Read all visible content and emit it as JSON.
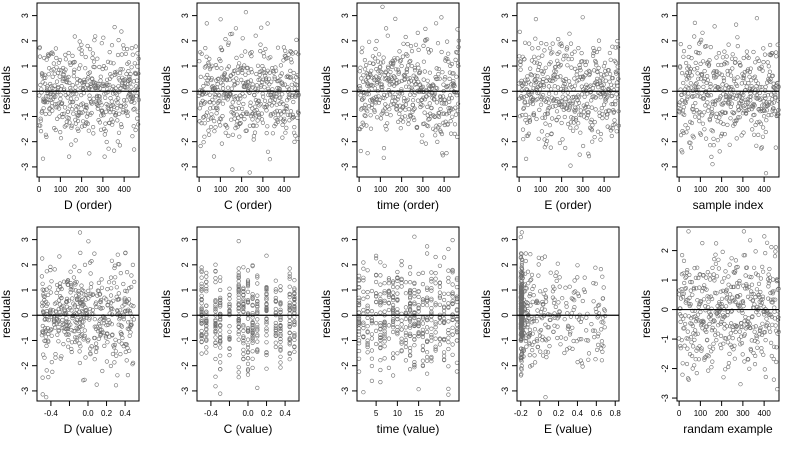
{
  "chart_data": [
    {
      "type": "scatter",
      "xlabel": "D (order)",
      "ylabel": "residuals",
      "xlim": [
        -10,
        470
      ],
      "ylim": [
        -3.4,
        3.5
      ],
      "xticks": [
        0,
        100,
        200,
        300,
        400
      ],
      "yticks": [
        -3,
        -2,
        -1,
        0,
        1,
        2,
        3
      ],
      "ref_line_y": 0,
      "n_points": 470,
      "x_kind": "index",
      "point_color": "#6e6e6e"
    },
    {
      "type": "scatter",
      "xlabel": "C (order)",
      "ylabel": "residuals",
      "xlim": [
        -10,
        470
      ],
      "ylim": [
        -3.4,
        3.5
      ],
      "xticks": [
        0,
        100,
        200,
        300,
        400
      ],
      "yticks": [
        -3,
        -2,
        -1,
        0,
        1,
        2,
        3
      ],
      "ref_line_y": 0,
      "n_points": 470,
      "x_kind": "index",
      "point_color": "#6e6e6e"
    },
    {
      "type": "scatter",
      "xlabel": "time (order)",
      "ylabel": "residuals",
      "xlim": [
        -10,
        470
      ],
      "ylim": [
        -3.4,
        3.5
      ],
      "xticks": [
        0,
        100,
        200,
        300,
        400
      ],
      "yticks": [
        -3,
        -2,
        -1,
        0,
        1,
        2,
        3
      ],
      "ref_line_y": 0,
      "n_points": 470,
      "x_kind": "index",
      "point_color": "#6e6e6e"
    },
    {
      "type": "scatter",
      "xlabel": "E (order)",
      "ylabel": "residuals",
      "xlim": [
        -10,
        470
      ],
      "ylim": [
        -3.4,
        3.5
      ],
      "xticks": [
        0,
        100,
        200,
        300,
        400
      ],
      "yticks": [
        -3,
        -2,
        -1,
        0,
        1,
        2,
        3
      ],
      "ref_line_y": 0,
      "n_points": 470,
      "x_kind": "index",
      "point_color": "#6e6e6e"
    },
    {
      "type": "scatter",
      "xlabel": "sample index",
      "ylabel": "residuals",
      "xlim": [
        -10,
        470
      ],
      "ylim": [
        -3.4,
        3.5
      ],
      "xticks": [
        0,
        100,
        200,
        300,
        400
      ],
      "yticks": [
        -3,
        -2,
        -1,
        0,
        1,
        2,
        3
      ],
      "ref_line_y": 0,
      "n_points": 470,
      "x_kind": "index",
      "point_color": "#6e6e6e"
    },
    {
      "type": "scatter",
      "xlabel": "D (value)",
      "ylabel": "residuals",
      "xlim": [
        -0.55,
        0.55
      ],
      "ylim": [
        -3.4,
        3.5
      ],
      "xticks": [
        -0.4,
        -0.2,
        0.0,
        0.2,
        0.4
      ],
      "xticklabels": [
        "-0.4",
        "",
        "0.0",
        "0.2",
        "0.4"
      ],
      "yticks": [
        -3,
        -2,
        -1,
        0,
        1,
        2,
        3
      ],
      "ref_line_y": 0,
      "n_points": 470,
      "x_kind": "uniform",
      "x_range": [
        -0.5,
        0.5
      ],
      "point_color": "#6e6e6e"
    },
    {
      "type": "scatter",
      "xlabel": "C (value)",
      "ylabel": "residuals",
      "xlim": [
        -0.55,
        0.55
      ],
      "ylim": [
        -3.4,
        3.5
      ],
      "xticks": [
        -0.4,
        -0.2,
        0.0,
        0.2,
        0.4
      ],
      "xticklabels": [
        "-0.4",
        "",
        "0.0",
        "0.2",
        "0.4"
      ],
      "yticks": [
        -3,
        -2,
        -1,
        0,
        1,
        2,
        3
      ],
      "ref_line_y": 0,
      "n_points": 470,
      "x_kind": "discrete",
      "x_values": [
        -0.5,
        -0.45,
        -0.35,
        -0.3,
        -0.2,
        -0.1,
        -0.05,
        0.0,
        0.05,
        0.1,
        0.2,
        0.3,
        0.35,
        0.45,
        0.5
      ],
      "point_color": "#6e6e6e"
    },
    {
      "type": "scatter",
      "xlabel": "time (value)",
      "ylabel": "residuals",
      "xlim": [
        0.5,
        24.5
      ],
      "ylim": [
        -3.4,
        3.5
      ],
      "xticks": [
        5,
        10,
        15,
        20
      ],
      "yticks": [
        -3,
        -2,
        -1,
        0,
        1,
        2,
        3
      ],
      "ref_line_y": 0,
      "n_points": 470,
      "x_kind": "discrete",
      "x_values": [
        1,
        2,
        3,
        4,
        5,
        6,
        7,
        8,
        9,
        10,
        11,
        12,
        13,
        14,
        15,
        16,
        17,
        18,
        19,
        20,
        21,
        22,
        23,
        24
      ],
      "point_color": "#6e6e6e"
    },
    {
      "type": "scatter",
      "xlabel": "E (value)",
      "ylabel": "residuals",
      "xlim": [
        -0.24,
        0.84
      ],
      "ylim": [
        -3.4,
        3.5
      ],
      "xticks": [
        -0.2,
        0.0,
        0.2,
        0.4,
        0.6,
        0.8
      ],
      "yticks": [
        -3,
        -2,
        -1,
        0,
        1,
        2,
        3
      ],
      "ref_line_y": 0,
      "n_points": 470,
      "x_kind": "skewed",
      "x_range": [
        -0.2,
        0.7
      ],
      "point_color": "#6e6e6e"
    },
    {
      "type": "scatter",
      "xlabel": "randam example",
      "ylabel": "residuals",
      "xlim": [
        -10,
        470
      ],
      "ylim": [
        -3.1,
        2.8
      ],
      "xticks": [
        0,
        100,
        200,
        300,
        400
      ],
      "yticks": [
        -3,
        -2,
        -1,
        0,
        1,
        2
      ],
      "ref_line_y": 0,
      "n_points": 470,
      "x_kind": "index",
      "point_color": "#6e6e6e"
    }
  ]
}
